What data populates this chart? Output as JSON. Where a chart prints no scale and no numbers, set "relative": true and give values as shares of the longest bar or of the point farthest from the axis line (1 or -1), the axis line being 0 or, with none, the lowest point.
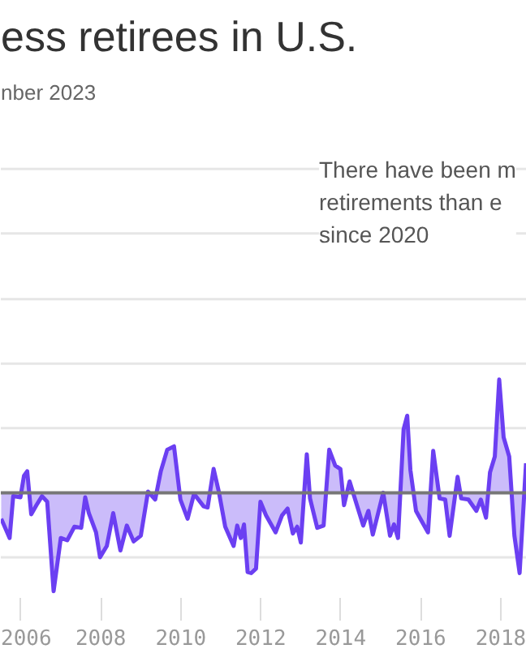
{
  "chart_data": {
    "type": "area",
    "title": "ess retirees in U.S.",
    "subtitle": "nber 2023",
    "annotations": [
      "There have been m\nretirements than e\nsince 2020"
    ],
    "relative": true,
    "ref_lines": [
      {
        "axis": "y",
        "value": -0.57,
        "color": "#e6e6e6"
      },
      {
        "axis": "y",
        "value": 0.57,
        "color": "#e6e6e6"
      },
      {
        "axis": "y",
        "value": 1.14,
        "color": "#e6e6e6"
      },
      {
        "axis": "y",
        "value": 1.71,
        "color": "#e6e6e6"
      },
      {
        "axis": "y",
        "value": 2.29,
        "color": "#e6e6e6"
      },
      {
        "axis": "y",
        "value": 2.86,
        "color": "#e6e6e6"
      }
    ],
    "color": "#6b3ff2",
    "xlim": [
      2005.5,
      2018.65
    ],
    "xticks": [
      2006,
      2008,
      2010,
      2012,
      2014,
      2016,
      2018
    ],
    "x": [
      2005.51,
      2005.72,
      2005.81,
      2005.99,
      2006.08,
      2006.16,
      2006.26,
      2006.39,
      2006.53,
      2006.66,
      2006.82,
      2007.0,
      2007.16,
      2007.34,
      2007.51,
      2007.61,
      2007.7,
      2007.88,
      2007.98,
      2008.15,
      2008.31,
      2008.49,
      2008.65,
      2008.82,
      2009.0,
      2009.18,
      2009.36,
      2009.5,
      2009.66,
      2009.83,
      2009.99,
      2010.17,
      2010.33,
      2010.57,
      2010.67,
      2010.82,
      2010.95,
      2011.11,
      2011.32,
      2011.41,
      2011.5,
      2011.58,
      2011.67,
      2011.76,
      2011.88,
      2011.99,
      2012.13,
      2012.37,
      2012.53,
      2012.67,
      2012.8,
      2012.91,
      2013.0,
      2013.15,
      2013.23,
      2013.41,
      2013.57,
      2013.71,
      2013.86,
      2013.99,
      2014.08,
      2014.22,
      2014.42,
      2014.56,
      2014.69,
      2014.8,
      2015.06,
      2015.23,
      2015.33,
      2015.43,
      2015.57,
      2015.66,
      2015.74,
      2015.88,
      2016.02,
      2016.18,
      2016.31,
      2016.47,
      2016.61,
      2016.72,
      2016.92,
      2017.01,
      2017.19,
      2017.39,
      2017.5,
      2017.63,
      2017.73,
      2017.85,
      2017.96,
      2018.07,
      2018.21,
      2018.34,
      2018.47,
      2018.63
    ],
    "values": [
      -0.23,
      -0.4,
      -0.03,
      -0.04,
      0.15,
      0.19,
      -0.19,
      -0.11,
      -0.03,
      -0.08,
      -0.87,
      -0.4,
      -0.42,
      -0.3,
      -0.31,
      -0.04,
      -0.18,
      -0.35,
      -0.57,
      -0.47,
      -0.18,
      -0.51,
      -0.29,
      -0.43,
      -0.38,
      0.01,
      -0.06,
      0.19,
      0.38,
      0.41,
      -0.06,
      -0.23,
      -0.01,
      -0.12,
      -0.13,
      0.21,
      0.01,
      -0.3,
      -0.47,
      -0.29,
      -0.4,
      -0.28,
      -0.7,
      -0.71,
      -0.67,
      -0.08,
      -0.2,
      -0.35,
      -0.2,
      -0.14,
      -0.36,
      -0.3,
      -0.44,
      0.34,
      -0.05,
      -0.31,
      -0.29,
      0.38,
      0.24,
      0.21,
      -0.11,
      0.1,
      -0.13,
      -0.29,
      -0.16,
      -0.37,
      0.0,
      -0.38,
      -0.28,
      -0.4,
      0.56,
      0.68,
      0.2,
      -0.16,
      -0.25,
      -0.35,
      0.37,
      -0.05,
      -0.06,
      -0.38,
      0.14,
      -0.05,
      -0.06,
      -0.16,
      -0.06,
      -0.22,
      0.18,
      0.32,
      1.0,
      0.49,
      0.32,
      -0.38,
      -0.71,
      0.26
    ]
  }
}
